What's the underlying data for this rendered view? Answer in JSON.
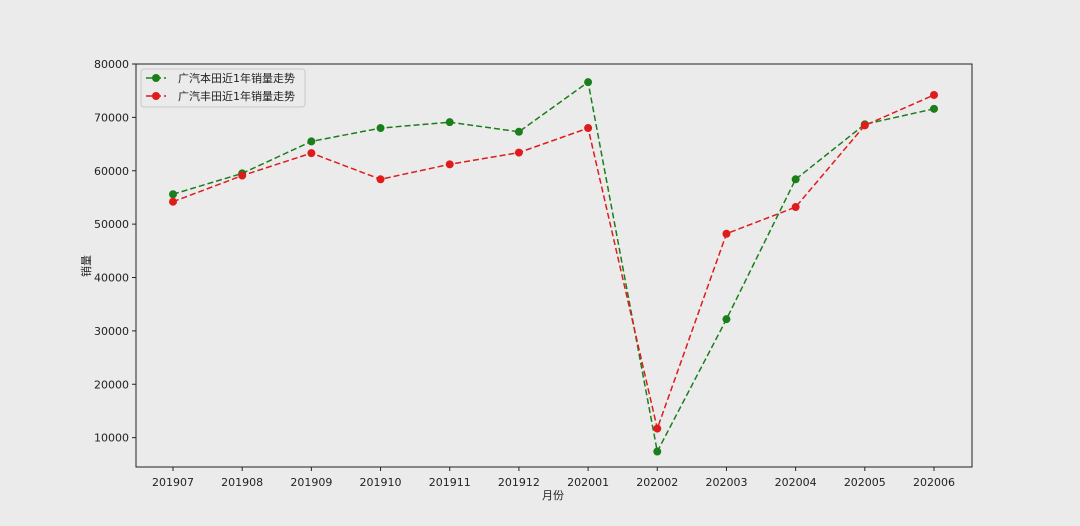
{
  "chart_data": {
    "type": "line",
    "categories": [
      "201907",
      "201908",
      "201909",
      "201910",
      "201911",
      "201912",
      "202001",
      "202002",
      "202003",
      "202004",
      "202005",
      "202006"
    ],
    "series": [
      {
        "name": "广汽本田近1年销量走势",
        "color": "#1a7f1a",
        "values": [
          55600,
          59500,
          65500,
          68000,
          69100,
          67300,
          76600,
          7400,
          32200,
          58400,
          68700,
          71600
        ]
      },
      {
        "name": "广汽丰田近1年销量走势",
        "color": "#e01b1b",
        "values": [
          54200,
          59100,
          63300,
          58400,
          61200,
          63400,
          68000,
          11700,
          48200,
          53200,
          68500,
          74200
        ]
      }
    ],
    "xlabel": "月份",
    "ylabel": "销量",
    "ylim": [
      4500,
      80000
    ],
    "yticks": [
      10000,
      20000,
      30000,
      40000,
      50000,
      60000,
      70000,
      80000
    ],
    "grid": false,
    "legend_position": "top-left",
    "line_style": "dashed",
    "marker": "circle"
  }
}
